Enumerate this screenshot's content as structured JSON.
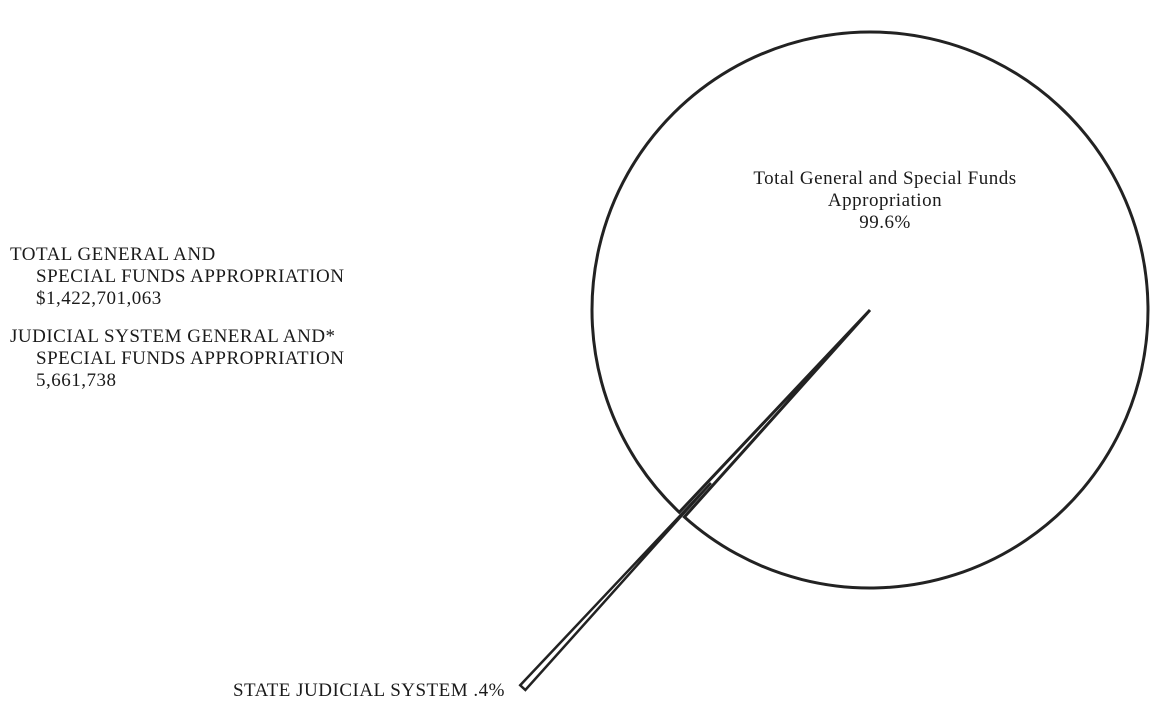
{
  "chart_data": {
    "type": "pie",
    "categories": [
      "Total General and Special Funds Appropriation",
      "STATE JUDICIAL SYSTEM"
    ],
    "values": [
      99.6,
      0.4
    ],
    "value_labels": [
      "99.6%",
      ".4%"
    ],
    "explode": [
      false,
      true
    ],
    "notes": [
      [
        "TOTAL GENERAL AND",
        "SPECIAL FUNDS APPROPRIATION",
        "$1,422,701,063"
      ],
      [
        "JUDICIAL SYSTEM GENERAL AND*",
        "SPECIAL FUNDS APPROPRIATION",
        "5,661,738"
      ]
    ]
  }
}
